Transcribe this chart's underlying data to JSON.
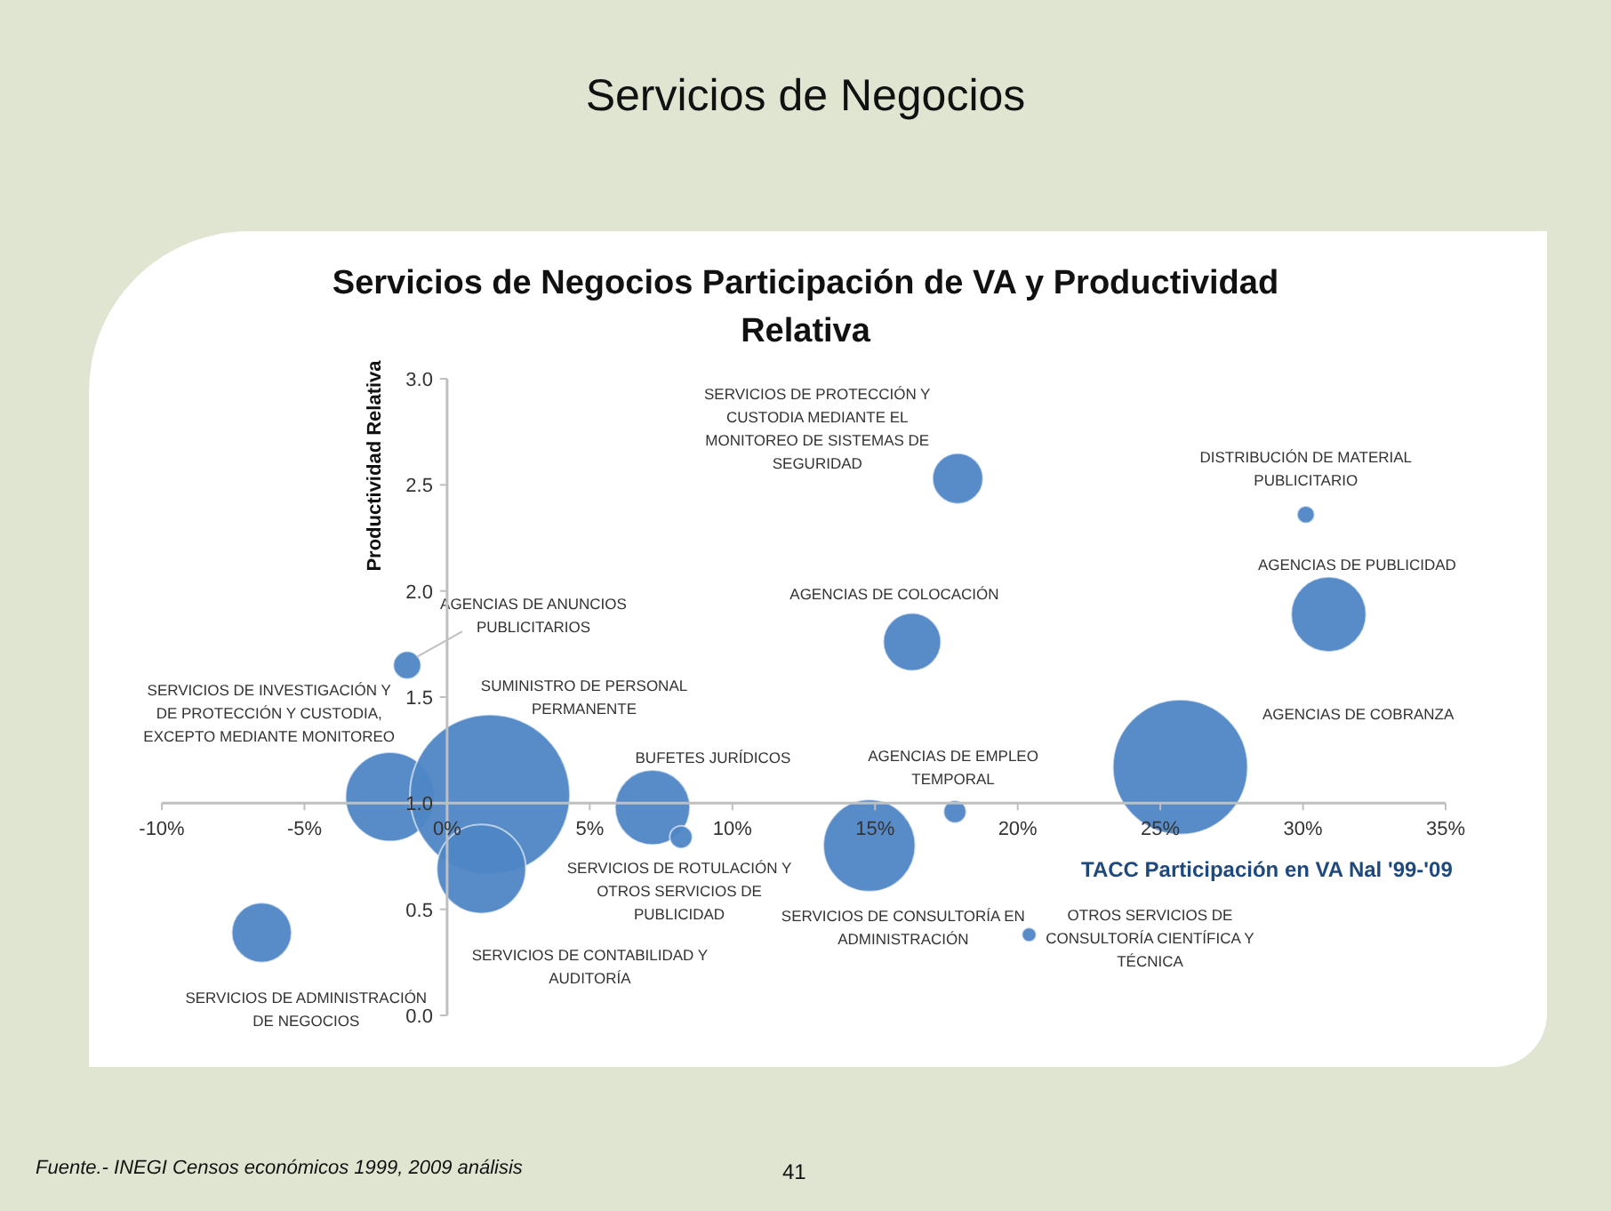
{
  "chart_data": {
    "type": "bubble",
    "title": "Servicios de Negocios",
    "subtitle": "Servicios de Negocios Participación de VA y Productividad Relativa",
    "xlabel": "TACC Participación en VA Nal '99-'09",
    "ylabel": "Productividad Relativa",
    "series": [
      {
        "color": "#4f86c6",
        "x": [
          -1.4,
          -2.0,
          1.5,
          1.2,
          -6.5,
          7.2,
          8.2,
          14.8,
          17.8,
          20.4,
          16.3,
          17.9,
          30.1,
          30.9,
          25.7
        ],
        "values": [
          1.65,
          1.03,
          1.04,
          0.69,
          0.39,
          0.98,
          0.84,
          0.8,
          0.96,
          0.38,
          1.76,
          2.53,
          2.36,
          1.89,
          1.17
        ],
        "sizes": [
          0.03,
          0.31,
          1,
          0.31,
          0.14,
          0.22,
          0.02,
          0.33,
          0.02,
          0.008,
          0.13,
          0.1,
          0.012,
          0.22,
          0.71
        ]
      }
    ],
    "xlim": [
      -10,
      35
    ],
    "ylim": [
      0,
      3
    ],
    "xticks": [
      {
        "value": -10,
        "label": "-10%"
      },
      {
        "value": -5,
        "label": "-5%"
      },
      {
        "value": 0,
        "label": "0%"
      },
      {
        "value": 5,
        "label": "5%"
      },
      {
        "value": 10,
        "label": "10%"
      },
      {
        "value": 15,
        "label": "15%"
      },
      {
        "value": 20,
        "label": "20%"
      },
      {
        "value": 25,
        "label": "25%"
      },
      {
        "value": 30,
        "label": "30%"
      },
      {
        "value": 35,
        "label": "35%"
      }
    ],
    "yticks": [
      {
        "value": 0,
        "label": "0.0"
      },
      {
        "value": 0.5,
        "label": "0.5"
      },
      {
        "value": 1,
        "label": "1.0"
      },
      {
        "value": 1.5,
        "label": "1.5"
      },
      {
        "value": 2,
        "label": "2.0"
      },
      {
        "value": 2.5,
        "label": "2.5"
      },
      {
        "value": 3,
        "label": "3.0"
      }
    ],
    "annotations": [
      "AGENCIAS DE ANUNCIOS PUBLICITARIOS",
      "SERVICIOS DE INVESTIGACIÓN Y DE PROTECCIÓN Y CUSTODIA, EXCEPTO MEDIANTE MONITOREO",
      "SUMINISTRO DE PERSONAL PERMANENTE",
      "SERVICIOS DE CONTABILIDAD Y AUDITORÍA",
      "SERVICIOS DE ADMINISTRACIÓN DE NEGOCIOS",
      "BUFETES JURÍDICOS",
      "SERVICIOS DE ROTULACIÓN Y OTROS SERVICIOS DE PUBLICIDAD",
      "SERVICIOS DE CONSULTORÍA EN ADMINISTRACIÓN",
      "AGENCIAS DE EMPLEO TEMPORAL",
      "OTROS SERVICIOS DE CONSULTORÍA CIENTÍFICA Y TÉCNICA",
      "AGENCIAS DE COLOCACIÓN",
      "SERVICIOS DE PROTECCIÓN Y CUSTODIA MEDIANTE EL MONITOREO DE SISTEMAS DE SEGURIDAD",
      "DISTRIBUCIÓN DE MATERIAL PUBLICITARIO",
      "AGENCIAS DE PUBLICIDAD",
      "AGENCIAS DE COBRANZA",
      "Fuente.- INEGI Censos económicos 1999, 2009 análisis",
      "41"
    ]
  }
}
